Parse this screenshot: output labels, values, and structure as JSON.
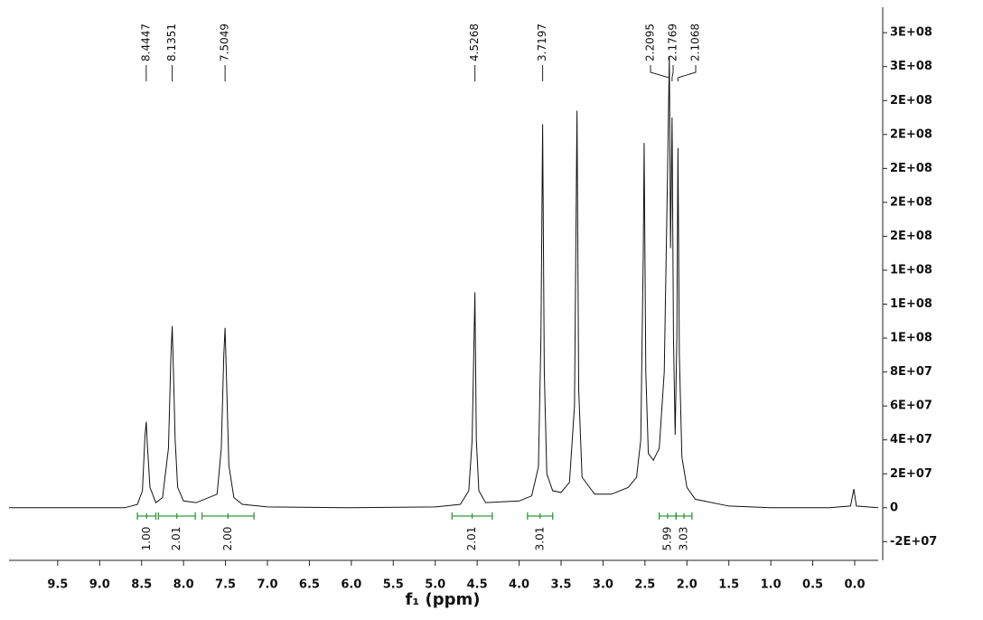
{
  "chart_data": {
    "type": "line",
    "xlabel": "f₁ (ppm)",
    "color": "#111111",
    "integral_color": "#2e9a3c",
    "xlim": [
      10.08,
      -0.28
    ],
    "ylim": [
      -31000000,
      295000000
    ],
    "xticks": [
      9.5,
      {
        "value": 9,
        "label": "9.0"
      },
      8.5,
      {
        "value": 8,
        "label": "8.0"
      },
      7.5,
      {
        "value": 7,
        "label": "7.0"
      },
      6.5,
      {
        "value": 6,
        "label": "6.0"
      },
      5.5,
      {
        "value": 5,
        "label": "5.0"
      },
      4.5,
      {
        "value": 4,
        "label": "4.0"
      },
      3.5,
      {
        "value": 3,
        "label": "3.0"
      },
      2.5,
      {
        "value": 2,
        "label": "2.0"
      },
      1.5,
      {
        "value": 1,
        "label": "1.0"
      },
      0.5,
      {
        "value": 0,
        "label": "0.0"
      }
    ],
    "yticks": [
      {
        "value": -20000000,
        "label": "-2E+07"
      },
      0,
      {
        "value": 20000000,
        "label": "2E+07"
      },
      {
        "value": 40000000,
        "label": "4E+07"
      },
      {
        "value": 60000000,
        "label": "6E+07"
      },
      {
        "value": 80000000,
        "label": "8E+07"
      },
      {
        "value": 100000000,
        "label": "1E+08"
      },
      {
        "value": 120000000,
        "label": "1E+08"
      },
      {
        "value": 140000000,
        "label": "1E+08"
      },
      {
        "value": 160000000,
        "label": "2E+08"
      },
      {
        "value": 180000000,
        "label": "2E+08"
      },
      {
        "value": 200000000,
        "label": "2E+08"
      },
      {
        "value": 220000000,
        "label": "2E+08"
      },
      {
        "value": 240000000,
        "label": "2E+08"
      },
      {
        "value": 260000000,
        "label": "3E+08"
      },
      {
        "value": 280000000,
        "label": "3E+08"
      }
    ],
    "x": [
      10.08,
      8.7,
      8.55,
      8.49,
      8.46,
      8.4447,
      8.43,
      8.4,
      8.33,
      8.25,
      8.18,
      8.15,
      8.1351,
      8.12,
      8.1,
      8.07,
      8.0,
      7.85,
      7.6,
      7.55,
      7.52,
      7.5049,
      7.49,
      7.46,
      7.4,
      7.3,
      7.0,
      6.0,
      5.0,
      4.7,
      4.6,
      4.56,
      4.5268,
      4.51,
      4.48,
      4.4,
      4.0,
      3.85,
      3.77,
      3.74,
      3.7197,
      3.7,
      3.67,
      3.6,
      3.5,
      3.4,
      3.34,
      3.31,
      3.29,
      3.25,
      3.1,
      2.9,
      2.7,
      2.6,
      2.55,
      2.52,
      2.51,
      2.49,
      2.46,
      2.4,
      2.33,
      2.27,
      2.23,
      2.2095,
      2.195,
      2.1769,
      2.16,
      2.14,
      2.12,
      2.1068,
      2.09,
      2.06,
      2.0,
      1.9,
      1.5,
      1.0,
      0.3,
      0.05,
      0.01,
      -0.02,
      -0.28
    ],
    "values": [
      0,
      0,
      2000000,
      10000000,
      42000000,
      50700000,
      36000000,
      12000000,
      3000000,
      6000000,
      35000000,
      90000000,
      107000000,
      80000000,
      40000000,
      12000000,
      4000000,
      3000000,
      8000000,
      35000000,
      90000000,
      106000000,
      80000000,
      25000000,
      6000000,
      2000000,
      500000,
      0,
      500000,
      2000000,
      10000000,
      40000000,
      127000000,
      40000000,
      10000000,
      3000000,
      4000000,
      7000000,
      24000000,
      100000000,
      226000000,
      80000000,
      20000000,
      10000000,
      9000000,
      15000000,
      60000000,
      234000000,
      70000000,
      18000000,
      8000000,
      8000000,
      12000000,
      18000000,
      40000000,
      150000000,
      215000000,
      80000000,
      32000000,
      28000000,
      35000000,
      80000000,
      200000000,
      266000000,
      153000000,
      230000000,
      100000000,
      43000000,
      100000000,
      212000000,
      90000000,
      30000000,
      12000000,
      5000000,
      1000000,
      0,
      0,
      1000000,
      11000000,
      1000000,
      0
    ],
    "peaks": [
      8.4447,
      8.1351,
      7.5049,
      4.5268,
      3.7197,
      2.2095,
      2.1769,
      2.1068
    ],
    "integrals": [
      {
        "range": [
          8.55,
          8.33
        ],
        "label": "1.00"
      },
      {
        "range": [
          8.3,
          7.86
        ],
        "label": "2.01"
      },
      {
        "range": [
          7.78,
          7.16
        ],
        "label": "2.00"
      },
      {
        "range": [
          4.8,
          4.32
        ],
        "label": "2.01"
      },
      {
        "range": [
          3.9,
          3.6
        ],
        "label": "3.01"
      },
      {
        "range": [
          2.33,
          2.13
        ],
        "label": "5.99"
      },
      {
        "range": [
          2.13,
          1.94
        ],
        "label": "3.03"
      }
    ]
  }
}
